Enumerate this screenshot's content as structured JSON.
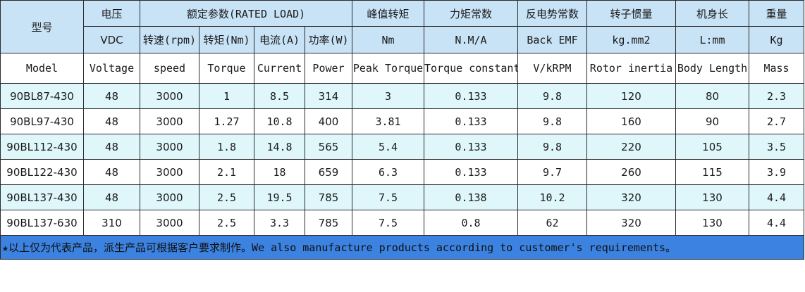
{
  "header": {
    "model_cn": "型号",
    "voltage_cn": "电压",
    "voltage_unit": "VDC",
    "rated_group": "额定参数(RATED LOAD)",
    "rated_cols": [
      "转速(rpm)",
      "转矩(Nm)",
      "电流(A)",
      "功率(W)"
    ],
    "peak_cn": "峰值转矩",
    "peak_unit": "Nm",
    "torque_const_cn": "力矩常数",
    "torque_const_unit": "N.M/A",
    "emf_cn": "反电势常数",
    "emf_unit": "Back EMF",
    "inertia_cn": "转子惯量",
    "inertia_unit": "kg.mm2",
    "length_cn": "机身长",
    "length_unit": "L:mm",
    "weight_cn": "重量",
    "weight_unit": "Kg"
  },
  "english_row": [
    "Model",
    "Voltage",
    "speed",
    "Torque",
    "Current",
    "Power",
    "Peak Torque",
    "Torque constant",
    "V/kRPM",
    "Rotor inertia",
    "Body Length",
    "Mass"
  ],
  "rows": [
    [
      "90BL87-430",
      "48",
      "3000",
      "1",
      "8.5",
      "314",
      "3",
      "0.133",
      "9.8",
      "120",
      "80",
      "2.3"
    ],
    [
      "90BL97-430",
      "48",
      "3000",
      "1.27",
      "10.8",
      "400",
      "3.81",
      "0.133",
      "9.8",
      "160",
      "90",
      "2.7"
    ],
    [
      "90BL112-430",
      "48",
      "3000",
      "1.8",
      "14.8",
      "565",
      "5.4",
      "0.133",
      "9.8",
      "220",
      "105",
      "3.5"
    ],
    [
      "90BL122-430",
      "48",
      "3000",
      "2.1",
      "18",
      "659",
      "6.3",
      "0.133",
      "9.7",
      "260",
      "115",
      "3.9"
    ],
    [
      "90BL137-430",
      "48",
      "3000",
      "2.5",
      "19.5",
      "785",
      "7.5",
      "0.138",
      "10.2",
      "320",
      "130",
      "4.4"
    ],
    [
      "90BL137-630",
      "310",
      "3000",
      "2.5",
      "3.3",
      "785",
      "7.5",
      "0.8",
      "62",
      "320",
      "130",
      "4.4"
    ]
  ],
  "footer": {
    "star": "★",
    "note": "以上仅为代表产品，派生产品可根据客户要求制作。We also manufacture products according to customer's requirements。"
  },
  "colors": {
    "header_bg": "#c8e2f6",
    "alt_row_bg": "#dff7fa",
    "footer_bg": "#3c82e0"
  }
}
